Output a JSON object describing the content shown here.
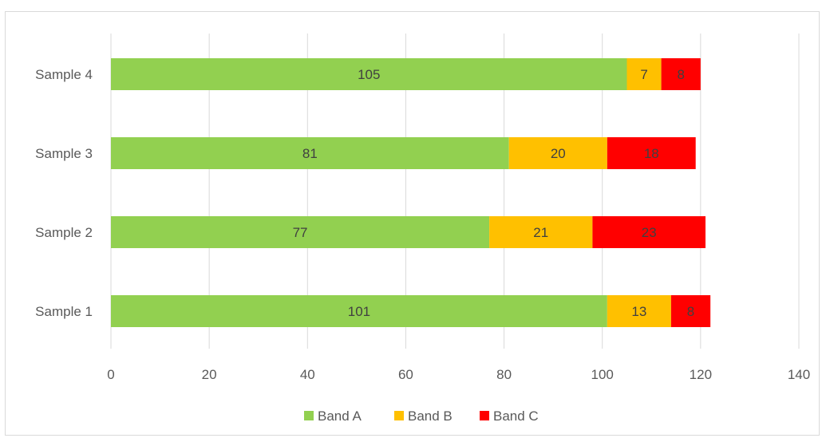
{
  "chart_data": {
    "type": "bar",
    "orientation": "horizontal",
    "stacked": true,
    "categories": [
      "Sample 1",
      "Sample 2",
      "Sample 3",
      "Sample 4"
    ],
    "series": [
      {
        "name": "Band A",
        "color": "#92d050",
        "values": [
          101,
          77,
          81,
          105
        ]
      },
      {
        "name": "Band B",
        "color": "#ffc000",
        "values": [
          13,
          21,
          20,
          7
        ]
      },
      {
        "name": "Band C",
        "color": "#ff0000",
        "values": [
          8,
          23,
          18,
          8
        ]
      }
    ],
    "xlim": [
      0,
      140
    ],
    "xticks": [
      "0",
      "20",
      "40",
      "60",
      "80",
      "100",
      "120",
      "140"
    ],
    "grid": true,
    "legend_position": "bottom",
    "data_labels": true,
    "title": "",
    "xlabel": "",
    "ylabel": ""
  }
}
